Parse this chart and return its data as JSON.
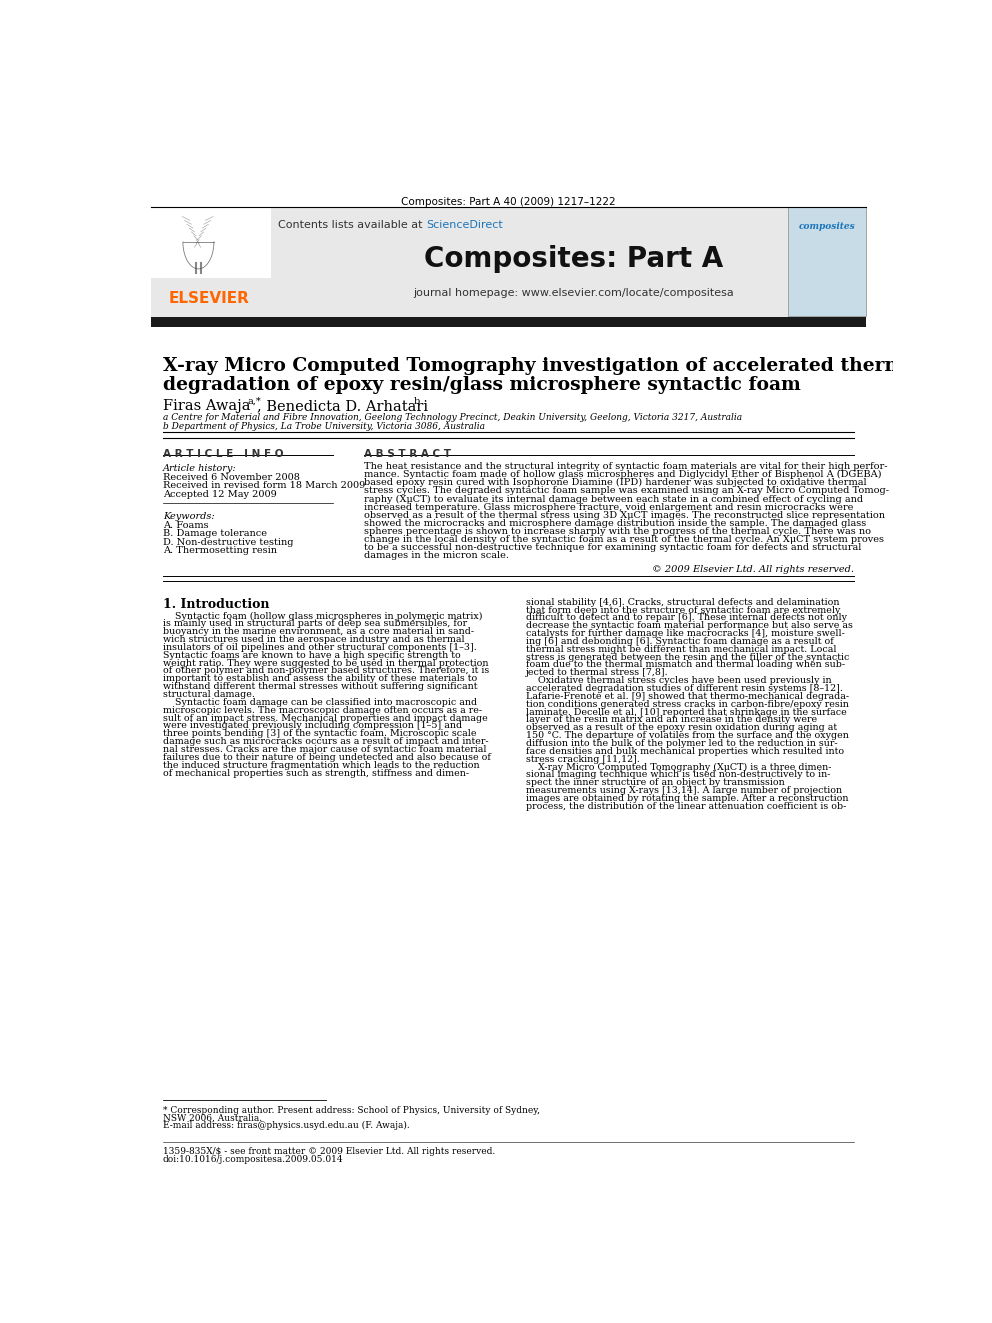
{
  "bg_color": "#ffffff",
  "journal_ref": "Composites: Part A 40 (2009) 1217–1222",
  "journal_name": "Composites: Part A",
  "journal_homepage": "journal homepage: www.elsevier.com/locate/compositesa",
  "contents_line": "Contents lists available at",
  "sciencedirect": "ScienceDirect",
  "paper_title_line1": "X-ray Micro Computed Tomography investigation of accelerated thermal",
  "paper_title_line2": "degradation of epoxy resin/glass microsphere syntactic foam",
  "affil_a": "a Centre for Material and Fibre Innovation, Geelong Technology Precinct, Deakin University, Geelong, Victoria 3217, Australia",
  "affil_b": "b Department of Physics, La Trobe University, Victoria 3086, Australia",
  "article_info_header": "A R T I C L E   I N F O",
  "abstract_header": "A B S T R A C T",
  "article_history_label": "Article history:",
  "received1": "Received 6 November 2008",
  "received2": "Received in revised form 18 March 2009",
  "accepted": "Accepted 12 May 2009",
  "keywords_label": "Keywords:",
  "kw1": "A. Foams",
  "kw2": "B. Damage tolerance",
  "kw3": "D. Non-destructive testing",
  "kw4": "A. Thermosetting resin",
  "abstract_lines": [
    "The heat resistance and the structural integrity of syntactic foam materials are vital for their high perfor-",
    "mance. Syntactic foam made of hollow glass microspheres and Diglycidyl Ether of Bisphenol A (DGEBA)",
    "based epoxy resin cured with Isophorone Diamine (IPD) hardener was subjected to oxidative thermal",
    "stress cycles. The degraded syntactic foam sample was examined using an X-ray Micro Computed Tomog-",
    "raphy (XμCT) to evaluate its internal damage between each state in a combined effect of cycling and",
    "increased temperature. Glass microsphere fracture, void enlargement and resin microcracks were",
    "observed as a result of the thermal stress using 3D XμCT images. The reconstructed slice representation",
    "showed the microcracks and microsphere damage distribution inside the sample. The damaged glass",
    "spheres percentage is shown to increase sharply with the progress of the thermal cycle. There was no",
    "change in the local density of the syntactic foam as a result of the thermal cycle. An XμCT system proves",
    "to be a successful non-destructive technique for examining syntactic foam for defects and structural",
    "damages in the micron scale."
  ],
  "copyright": "© 2009 Elsevier Ltd. All rights reserved.",
  "intro_header": "1. Introduction",
  "intro_col1_lines": [
    "    Syntactic foam (hollow glass microspheres in polymeric matrix)",
    "is mainly used in structural parts of deep sea submersibles, for",
    "buoyancy in the marine environment, as a core material in sand-",
    "wich structures used in the aerospace industry and as thermal",
    "insulators of oil pipelines and other structural components [1–3].",
    "Syntactic foams are known to have a high specific strength to",
    "weight ratio. They were suggested to be used in thermal protection",
    "of other polymer and non-polymer based structures. Therefore, it is",
    "important to establish and assess the ability of these materials to",
    "withstand different thermal stresses without suffering significant",
    "structural damage.",
    "    Syntactic foam damage can be classified into macroscopic and",
    "microscopic levels. The macroscopic damage often occurs as a re-",
    "sult of an impact stress. Mechanical properties and impact damage",
    "were investigated previously including compression [1–5] and",
    "three points bending [3] of the syntactic foam. Microscopic scale",
    "damage such as microcracks occurs as a result of impact and inter-",
    "nal stresses. Cracks are the major cause of syntactic foam material",
    "failures due to their nature of being undetected and also because of",
    "the induced structure fragmentation which leads to the reduction",
    "of mechanical properties such as strength, stiffness and dimen-"
  ],
  "intro_col2_lines": [
    "sional stability [4,6]. Cracks, structural defects and delamination",
    "that form deep into the structure of syntactic foam are extremely",
    "difficult to detect and to repair [6]. These internal defects not only",
    "decrease the syntactic foam material performance but also serve as",
    "catalysts for further damage like macrocracks [4], moisture swell-",
    "ing [6] and debonding [6]. Syntactic foam damage as a result of",
    "thermal stress might be different than mechanical impact. Local",
    "stress is generated between the resin and the filler of the syntactic",
    "foam due to the thermal mismatch and thermal loading when sub-",
    "jected to thermal stress [7,8].",
    "    Oxidative thermal stress cycles have been used previously in",
    "accelerated degradation studies of different resin systems [8–12].",
    "Lafarie-Frenote et al. [9] showed that thermo-mechanical degrada-",
    "tion conditions generated stress cracks in carbon-fibre/epoxy resin",
    "laminate. Decelle et al. [10] reported that shrinkage in the surface",
    "layer of the resin matrix and an increase in the density were",
    "observed as a result of the epoxy resin oxidation during aging at",
    "150 °C. The departure of volatiles from the surface and the oxygen",
    "diffusion into the bulk of the polymer led to the reduction in sur-",
    "face densities and bulk mechanical properties which resulted into",
    "stress cracking [11,12].",
    "    X-ray Micro Computed Tomography (XμCT) is a three dimen-",
    "sional imaging technique which is used non-destructively to in-",
    "spect the inner structure of an object by transmission",
    "measurements using X-rays [13,14]. A large number of projection",
    "images are obtained by rotating the sample. After a reconstruction",
    "process, the distribution of the linear attenuation coefficient is ob-"
  ],
  "footnote1": "* Corresponding author. Present address: School of Physics, University of Sydney,",
  "footnote2": "NSW 2006, Australia.",
  "footnote3": "E-mail address: firas@physics.usyd.edu.au (F. Awaja).",
  "footer1": "1359-835X/$ - see front matter © 2009 Elsevier Ltd. All rights reserved.",
  "footer2": "doi:10.1016/j.compositesa.2009.05.014",
  "elsevier_color": "#FF6600",
  "sciencedirect_color": "#1a75bb",
  "header_bg": "#e8e8e8",
  "thick_bar_color": "#1a1a1a"
}
